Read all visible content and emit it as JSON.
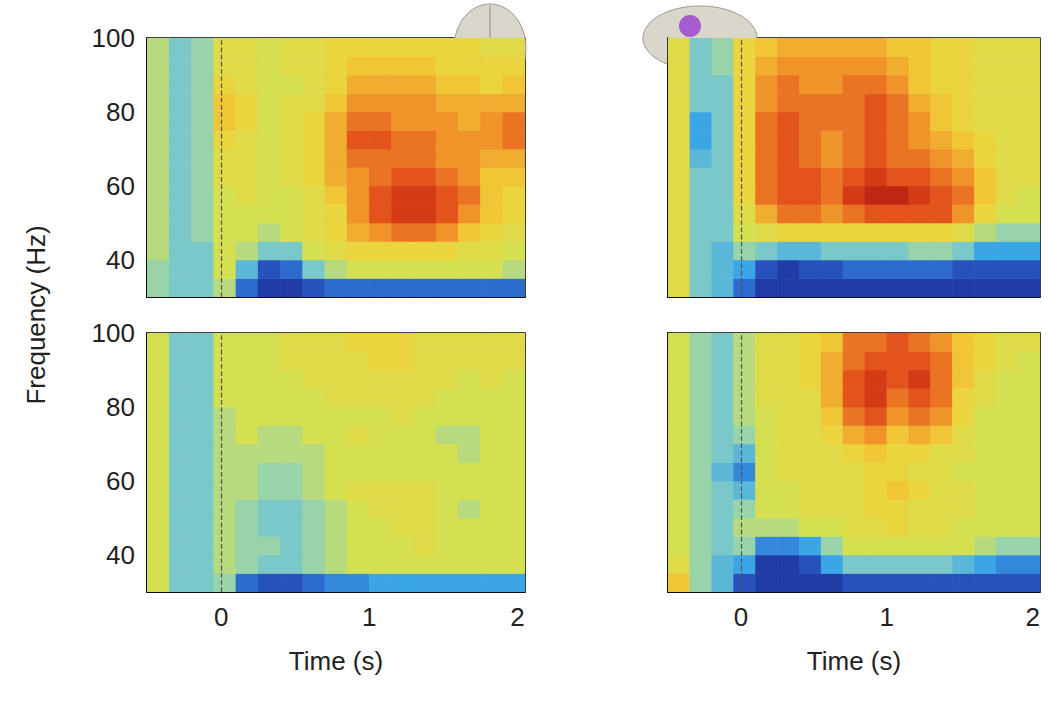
{
  "chart_data": [
    {
      "type": "heatmap",
      "ylabel": "Frequency (Hz)",
      "tick_labels": "y",
      "grid": false,
      "xlim": [
        -0.5,
        2.05
      ],
      "xticks": [
        0,
        1,
        2
      ],
      "ylim": [
        30,
        100
      ],
      "yticks": [
        40,
        60,
        80,
        100
      ],
      "stimulus_onset": 0,
      "color_range": [
        -10,
        10
      ],
      "time_edges": [
        -0.5,
        -0.35,
        -0.2,
        -0.05,
        0.1,
        0.25,
        0.4,
        0.55,
        0.7,
        0.85,
        1.0,
        1.15,
        1.3,
        1.45,
        1.6,
        1.75,
        1.9,
        2.05
      ],
      "freq_edges": [
        30,
        35,
        40,
        45,
        50,
        55,
        60,
        65,
        70,
        75,
        80,
        85,
        90,
        95,
        100
      ],
      "cells": [
        [
          -2,
          -3,
          -3,
          -1,
          -7,
          -9,
          -9,
          -8,
          -7,
          -7,
          -7,
          -7,
          -7,
          -7,
          -7,
          -7,
          -7
        ],
        [
          -2,
          -3,
          -3,
          0,
          -4,
          -8,
          -7,
          -3,
          -1,
          0,
          0,
          0,
          0,
          0,
          0,
          0,
          -1
        ],
        [
          -1,
          -3,
          -3,
          0,
          -1,
          -3,
          -3,
          0,
          1,
          2,
          2,
          2,
          2,
          2,
          1,
          1,
          0
        ],
        [
          -1,
          -3,
          -2,
          0,
          0,
          -1,
          0,
          1,
          2,
          4,
          5,
          6,
          6,
          5,
          3,
          2,
          1
        ],
        [
          -1,
          -3,
          -2,
          0,
          0,
          0,
          0,
          1,
          2,
          5,
          7,
          8,
          8,
          7,
          5,
          3,
          2
        ],
        [
          -1,
          -3,
          -2,
          0,
          1,
          0,
          0,
          1,
          3,
          5,
          7,
          8,
          8,
          7,
          6,
          3,
          2
        ],
        [
          -1,
          -3,
          -2,
          1,
          1,
          0,
          1,
          2,
          4,
          5,
          6,
          7,
          7,
          6,
          5,
          3,
          3
        ],
        [
          -1,
          -3,
          -2,
          1,
          1,
          0,
          1,
          2,
          4,
          6,
          6,
          6,
          6,
          5,
          5,
          4,
          4
        ],
        [
          -1,
          -3,
          -2,
          2,
          1,
          0,
          1,
          2,
          4,
          7,
          7,
          6,
          6,
          5,
          5,
          5,
          6
        ],
        [
          -1,
          -3,
          -2,
          3,
          2,
          0,
          1,
          2,
          4,
          6,
          6,
          5,
          5,
          5,
          4,
          5,
          6
        ],
        [
          -1,
          -3,
          -2,
          3,
          2,
          0,
          1,
          1,
          3,
          5,
          5,
          5,
          5,
          4,
          4,
          4,
          4
        ],
        [
          -1,
          -3,
          -2,
          2,
          1,
          0,
          0,
          1,
          2,
          4,
          4,
          4,
          4,
          3,
          3,
          2,
          3
        ],
        [
          -1,
          -3,
          -2,
          1,
          1,
          0,
          1,
          1,
          2,
          3,
          3,
          3,
          3,
          2,
          2,
          2,
          2
        ],
        [
          -1,
          -3,
          -2,
          1,
          1,
          0,
          1,
          1,
          2,
          2,
          2,
          2,
          2,
          2,
          2,
          1,
          1
        ]
      ]
    },
    {
      "type": "heatmap",
      "tick_labels": false,
      "grid": false,
      "xlim": [
        -0.5,
        2.05
      ],
      "xticks": [
        0,
        1,
        2
      ],
      "ylim": [
        30,
        100
      ],
      "yticks": [
        40,
        60,
        80,
        100
      ],
      "stimulus_onset": 0,
      "color_range": [
        -10,
        10
      ],
      "time_edges": [
        -0.5,
        -0.35,
        -0.2,
        -0.05,
        0.1,
        0.25,
        0.4,
        0.55,
        0.7,
        0.85,
        1.0,
        1.15,
        1.3,
        1.45,
        1.6,
        1.75,
        1.9,
        2.05
      ],
      "freq_edges": [
        30,
        35,
        40,
        45,
        50,
        55,
        60,
        65,
        70,
        75,
        80,
        85,
        90,
        95,
        100
      ],
      "cells": [
        [
          1,
          -3,
          -4,
          -7,
          -9,
          -9,
          -9,
          -9,
          -9,
          -9,
          -9,
          -9,
          -9,
          -9,
          -9,
          -9,
          -9
        ],
        [
          1,
          -3,
          -4,
          -5,
          -8,
          -9,
          -8,
          -8,
          -7,
          -7,
          -7,
          -7,
          -7,
          -8,
          -8,
          -8,
          -8
        ],
        [
          1,
          -3,
          -4,
          -2,
          -3,
          -4,
          -4,
          -3,
          -3,
          -3,
          -3,
          -2,
          -2,
          -3,
          -5,
          -5,
          -5
        ],
        [
          1,
          -3,
          -3,
          0,
          1,
          2,
          2,
          2,
          2,
          2,
          2,
          2,
          2,
          1,
          -1,
          -2,
          -2
        ],
        [
          1,
          -3,
          -3,
          1,
          4,
          6,
          6,
          5,
          6,
          7,
          7,
          7,
          7,
          5,
          2,
          0,
          0
        ],
        [
          1,
          -3,
          -3,
          2,
          6,
          7,
          7,
          6,
          8,
          9,
          9,
          8,
          7,
          6,
          3,
          1,
          0
        ],
        [
          1,
          -3,
          -3,
          2,
          6,
          7,
          7,
          6,
          7,
          8,
          7,
          7,
          6,
          5,
          3,
          1,
          1
        ],
        [
          1,
          -4,
          -3,
          2,
          6,
          7,
          6,
          5,
          6,
          7,
          6,
          6,
          5,
          4,
          2,
          1,
          1
        ],
        [
          1,
          -5,
          -3,
          2,
          6,
          7,
          6,
          5,
          6,
          7,
          6,
          5,
          4,
          3,
          2,
          1,
          1
        ],
        [
          1,
          -5,
          -3,
          2,
          6,
          7,
          6,
          6,
          6,
          7,
          6,
          5,
          3,
          2,
          1,
          1,
          1
        ],
        [
          1,
          -3,
          -3,
          2,
          5,
          6,
          6,
          6,
          6,
          7,
          6,
          4,
          3,
          2,
          1,
          1,
          1
        ],
        [
          1,
          -3,
          -3,
          2,
          5,
          6,
          5,
          5,
          6,
          6,
          5,
          3,
          2,
          2,
          1,
          1,
          1
        ],
        [
          1,
          -3,
          -2,
          2,
          4,
          5,
          5,
          5,
          5,
          5,
          4,
          3,
          2,
          2,
          1,
          1,
          1
        ],
        [
          1,
          -3,
          -2,
          2,
          3,
          4,
          4,
          4,
          4,
          4,
          3,
          3,
          2,
          2,
          1,
          1,
          1
        ]
      ]
    },
    {
      "type": "heatmap",
      "xlabel": "Time (s)",
      "grid": false,
      "xlim": [
        -0.5,
        2.05
      ],
      "xticks": [
        0,
        1,
        2
      ],
      "ylim": [
        30,
        100
      ],
      "yticks": [
        40,
        60,
        80,
        100
      ],
      "stimulus_onset": 0,
      "color_range": [
        -10,
        10
      ],
      "time_edges": [
        -0.5,
        -0.35,
        -0.2,
        -0.05,
        0.1,
        0.25,
        0.4,
        0.55,
        0.7,
        0.85,
        1.0,
        1.15,
        1.3,
        1.45,
        1.6,
        1.75,
        1.9,
        2.05
      ],
      "freq_edges": [
        30,
        35,
        40,
        45,
        50,
        55,
        60,
        65,
        70,
        75,
        80,
        85,
        90,
        95,
        100
      ],
      "cells": [
        [
          0,
          -3,
          -3,
          -2,
          -7,
          -8,
          -8,
          -7,
          -6,
          -6,
          -5,
          -5,
          -5,
          -5,
          -5,
          -5,
          -5
        ],
        [
          0,
          -3,
          -3,
          -1,
          -2,
          -3,
          -3,
          -2,
          -1,
          0,
          0,
          0,
          0,
          0,
          0,
          0,
          0
        ],
        [
          0,
          -3,
          -3,
          -1,
          -2,
          -2,
          -3,
          -2,
          -1,
          0,
          0,
          0,
          1,
          0,
          0,
          0,
          0
        ],
        [
          0,
          -3,
          -3,
          -1,
          -2,
          -3,
          -3,
          -2,
          -1,
          0,
          0,
          1,
          1,
          0,
          0,
          0,
          0
        ],
        [
          0,
          -3,
          -3,
          -1,
          -2,
          -3,
          -3,
          -2,
          -1,
          0,
          1,
          1,
          1,
          0,
          -1,
          0,
          0
        ],
        [
          0,
          -3,
          -3,
          -1,
          -1,
          -2,
          -2,
          -1,
          0,
          1,
          1,
          1,
          1,
          0,
          0,
          0,
          0
        ],
        [
          0,
          -3,
          -3,
          -1,
          -1,
          -2,
          -2,
          -1,
          0,
          0,
          0,
          0,
          0,
          0,
          0,
          0,
          0
        ],
        [
          0,
          -3,
          -3,
          -1,
          -1,
          -1,
          -1,
          -1,
          0,
          0,
          0,
          0,
          0,
          0,
          -1,
          0,
          0
        ],
        [
          0,
          -3,
          -3,
          -1,
          0,
          -1,
          -1,
          0,
          0,
          1,
          0,
          0,
          0,
          -1,
          -1,
          0,
          0
        ],
        [
          0,
          -3,
          -3,
          -1,
          0,
          0,
          0,
          0,
          0,
          0,
          0,
          1,
          0,
          0,
          0,
          0,
          0
        ],
        [
          0,
          -3,
          -3,
          0,
          0,
          0,
          0,
          0,
          1,
          1,
          1,
          1,
          1,
          0,
          0,
          0,
          0
        ],
        [
          0,
          -3,
          -3,
          0,
          0,
          0,
          0,
          1,
          1,
          1,
          1,
          1,
          1,
          1,
          0,
          1,
          0
        ],
        [
          0,
          -3,
          -3,
          0,
          0,
          0,
          1,
          1,
          1,
          1,
          2,
          2,
          1,
          1,
          1,
          1,
          1
        ],
        [
          0,
          -3,
          -3,
          0,
          0,
          0,
          1,
          1,
          1,
          2,
          2,
          2,
          1,
          1,
          1,
          1,
          1
        ]
      ]
    },
    {
      "type": "heatmap",
      "xlabel": "Time (s)",
      "tick_labels": "x",
      "grid": false,
      "xlim": [
        -0.5,
        2.05
      ],
      "xticks": [
        0,
        1,
        2
      ],
      "ylim": [
        30,
        100
      ],
      "yticks": [
        40,
        60,
        80,
        100
      ],
      "stimulus_onset": 0,
      "color_range": [
        -10,
        10
      ],
      "time_edges": [
        -0.5,
        -0.35,
        -0.2,
        -0.05,
        0.1,
        0.25,
        0.4,
        0.55,
        0.7,
        0.85,
        1.0,
        1.15,
        1.3,
        1.45,
        1.6,
        1.75,
        1.9,
        2.05
      ],
      "freq_edges": [
        30,
        35,
        40,
        45,
        50,
        55,
        60,
        65,
        70,
        75,
        80,
        85,
        90,
        95,
        100
      ],
      "cells": [
        [
          3,
          -2,
          -4,
          -8,
          -9,
          -9,
          -9,
          -9,
          -8,
          -8,
          -8,
          -8,
          -8,
          -8,
          -8,
          -8,
          -8
        ],
        [
          1,
          -2,
          -4,
          -5,
          -9,
          -9,
          -8,
          -5,
          -3,
          -3,
          -3,
          -3,
          -3,
          -4,
          -5,
          -6,
          -6
        ],
        [
          0,
          -2,
          -3,
          -2,
          -6,
          -6,
          -5,
          -2,
          0,
          0,
          0,
          0,
          0,
          0,
          -1,
          -2,
          -2
        ],
        [
          0,
          -2,
          -3,
          -1,
          -1,
          -1,
          0,
          0,
          1,
          1,
          2,
          1,
          1,
          0,
          0,
          0,
          0
        ],
        [
          0,
          -2,
          -3,
          -2,
          0,
          0,
          1,
          1,
          1,
          2,
          2,
          1,
          1,
          1,
          0,
          0,
          0
        ],
        [
          0,
          -2,
          -3,
          -4,
          0,
          0,
          1,
          1,
          1,
          2,
          3,
          2,
          1,
          1,
          0,
          0,
          0
        ],
        [
          0,
          -2,
          -4,
          -6,
          0,
          1,
          1,
          1,
          1,
          2,
          2,
          1,
          1,
          0,
          0,
          0,
          0
        ],
        [
          0,
          -2,
          -3,
          -4,
          0,
          1,
          1,
          1,
          2,
          3,
          2,
          2,
          1,
          1,
          0,
          0,
          0
        ],
        [
          0,
          -2,
          -3,
          -2,
          0,
          1,
          1,
          2,
          4,
          5,
          3,
          4,
          3,
          1,
          0,
          0,
          0
        ],
        [
          0,
          -2,
          -3,
          -1,
          0,
          1,
          1,
          3,
          6,
          7,
          5,
          6,
          5,
          2,
          0,
          0,
          0
        ],
        [
          0,
          -2,
          -3,
          -1,
          1,
          1,
          1,
          4,
          7,
          8,
          6,
          7,
          6,
          2,
          1,
          0,
          0
        ],
        [
          0,
          -2,
          -3,
          -1,
          1,
          1,
          2,
          4,
          7,
          8,
          7,
          8,
          6,
          3,
          1,
          0,
          0
        ],
        [
          0,
          -2,
          -3,
          -1,
          1,
          1,
          2,
          4,
          6,
          7,
          7,
          7,
          6,
          3,
          2,
          1,
          0
        ],
        [
          0,
          -2,
          -3,
          -1,
          1,
          1,
          2,
          3,
          6,
          6,
          7,
          6,
          5,
          3,
          2,
          1,
          1
        ]
      ]
    }
  ]
}
